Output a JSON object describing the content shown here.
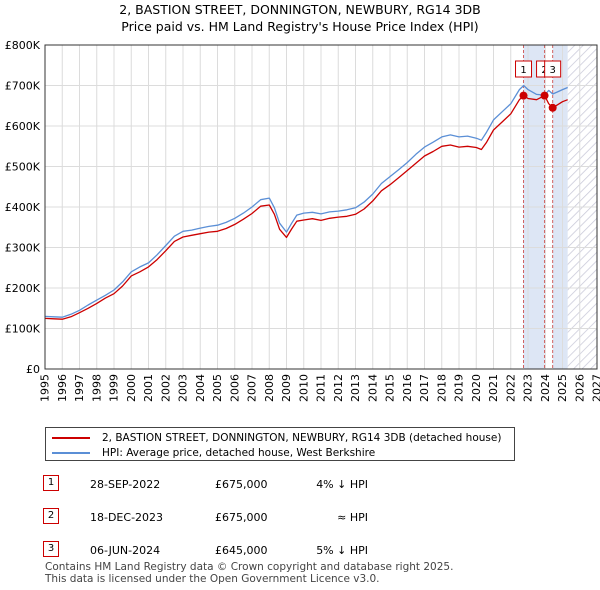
{
  "title_line1": "2, BASTION STREET, DONNINGTON, NEWBURY, RG14 3DB",
  "title_line2": "Price paid vs. HM Land Registry's House Price Index (HPI)",
  "colors": {
    "price_paid": "#cc0000",
    "hpi": "#5b8fd6",
    "shade": "#dde6f5",
    "marker_line": "#d06060",
    "hatch": "#c8c8d8"
  },
  "legend": {
    "price_paid": "2, BASTION STREET, DONNINGTON, NEWBURY, RG14 3DB (detached house)",
    "hpi": "HPI: Average price, detached house, West Berkshire"
  },
  "sales": [
    {
      "num": "1",
      "date": "28-SEP-2022",
      "price": "£675,000",
      "hpi": "4% ↓ HPI"
    },
    {
      "num": "2",
      "date": "18-DEC-2023",
      "price": "£675,000",
      "hpi": "≈ HPI"
    },
    {
      "num": "3",
      "date": "06-JUN-2024",
      "price": "£645,000",
      "hpi": "5% ↓ HPI"
    }
  ],
  "footer_line1": "Contains HM Land Registry data © Crown copyright and database right 2025.",
  "footer_line2": "This data is licensed under the Open Government Licence v3.0.",
  "chart_data": {
    "type": "line",
    "title": "2, BASTION STREET, DONNINGTON, NEWBURY, RG14 3DB",
    "subtitle": "Price paid vs. HM Land Registry's House Price Index (HPI)",
    "xlabel": "",
    "ylabel": "",
    "xlim": [
      1995,
      2027
    ],
    "ylim": [
      0,
      800000
    ],
    "x_ticks": [
      "1995",
      "1996",
      "1997",
      "1998",
      "1999",
      "2000",
      "2001",
      "2002",
      "2003",
      "2004",
      "2005",
      "2006",
      "2007",
      "2008",
      "2009",
      "2010",
      "2011",
      "2012",
      "2013",
      "2014",
      "2015",
      "2016",
      "2017",
      "2018",
      "2019",
      "2020",
      "2021",
      "2022",
      "2023",
      "2024",
      "2025",
      "2026",
      "2027"
    ],
    "y_ticks": [
      {
        "value": 0,
        "label": "£0"
      },
      {
        "value": 100000,
        "label": "£100K"
      },
      {
        "value": 200000,
        "label": "£200K"
      },
      {
        "value": 300000,
        "label": "£300K"
      },
      {
        "value": 400000,
        "label": "£400K"
      },
      {
        "value": 500000,
        "label": "£500K"
      },
      {
        "value": 600000,
        "label": "£600K"
      },
      {
        "value": 700000,
        "label": "£700K"
      },
      {
        "value": 800000,
        "label": "£800K"
      }
    ],
    "grid": true,
    "legend_position": "bottom",
    "series": [
      {
        "name": "HPI: Average price, detached house, West Berkshire",
        "x": [
          1995.0,
          1995.5,
          1996.0,
          1996.5,
          1997.0,
          1997.5,
          1998.0,
          1998.5,
          1999.0,
          1999.5,
          2000.0,
          2000.5,
          2001.0,
          2001.5,
          2002.0,
          2002.5,
          2003.0,
          2003.5,
          2004.0,
          2004.5,
          2005.0,
          2005.5,
          2006.0,
          2006.5,
          2007.0,
          2007.5,
          2008.0,
          2008.3,
          2008.6,
          2009.0,
          2009.3,
          2009.6,
          2010.0,
          2010.5,
          2011.0,
          2011.5,
          2012.0,
          2012.5,
          2013.0,
          2013.5,
          2014.0,
          2014.5,
          2015.0,
          2015.5,
          2016.0,
          2016.5,
          2017.0,
          2017.5,
          2018.0,
          2018.5,
          2019.0,
          2019.5,
          2020.0,
          2020.3,
          2020.6,
          2021.0,
          2021.5,
          2022.0,
          2022.5,
          2022.75,
          2023.0,
          2023.5,
          2023.96,
          2024.2,
          2024.43,
          2024.7,
          2025.0,
          2025.3
        ],
        "y": [
          130000,
          129000,
          128000,
          135000,
          145000,
          158000,
          170000,
          182000,
          195000,
          215000,
          240000,
          252000,
          262000,
          282000,
          305000,
          328000,
          340000,
          343000,
          348000,
          352000,
          355000,
          362000,
          372000,
          385000,
          400000,
          418000,
          422000,
          398000,
          360000,
          338000,
          360000,
          380000,
          385000,
          387000,
          383000,
          388000,
          390000,
          393000,
          398000,
          412000,
          432000,
          458000,
          475000,
          492000,
          510000,
          530000,
          548000,
          560000,
          573000,
          578000,
          573000,
          575000,
          570000,
          565000,
          585000,
          615000,
          635000,
          655000,
          690000,
          700000,
          690000,
          678000,
          676000,
          688000,
          679000,
          684000,
          690000,
          695000
        ]
      },
      {
        "name": "2, BASTION STREET, DONNINGTON, NEWBURY, RG14 3DB (detached house)",
        "x": [
          1995.0,
          1995.5,
          1996.0,
          1996.5,
          1997.0,
          1997.5,
          1998.0,
          1998.5,
          1999.0,
          1999.5,
          2000.0,
          2000.5,
          2001.0,
          2001.5,
          2002.0,
          2002.5,
          2003.0,
          2003.5,
          2004.0,
          2004.5,
          2005.0,
          2005.5,
          2006.0,
          2006.5,
          2007.0,
          2007.5,
          2008.0,
          2008.3,
          2008.6,
          2009.0,
          2009.3,
          2009.6,
          2010.0,
          2010.5,
          2011.0,
          2011.5,
          2012.0,
          2012.5,
          2013.0,
          2013.5,
          2014.0,
          2014.5,
          2015.0,
          2015.5,
          2016.0,
          2016.5,
          2017.0,
          2017.5,
          2018.0,
          2018.5,
          2019.0,
          2019.5,
          2020.0,
          2020.3,
          2020.6,
          2021.0,
          2021.5,
          2022.0,
          2022.5,
          2022.75,
          2023.0,
          2023.5,
          2023.96,
          2024.2,
          2024.43,
          2024.7,
          2025.0,
          2025.3
        ],
        "y": [
          125000,
          124000,
          123000,
          129000,
          139000,
          150000,
          162000,
          175000,
          186000,
          205000,
          230000,
          240000,
          252000,
          270000,
          292000,
          315000,
          326000,
          330000,
          334000,
          338000,
          340000,
          347000,
          357000,
          370000,
          384000,
          402000,
          405000,
          382000,
          345000,
          325000,
          346000,
          365000,
          368000,
          371000,
          367000,
          372000,
          375000,
          377000,
          382000,
          395000,
          415000,
          440000,
          455000,
          472000,
          490000,
          508000,
          526000,
          537000,
          550000,
          553000,
          548000,
          550000,
          547000,
          542000,
          560000,
          590000,
          610000,
          630000,
          665000,
          675000,
          668000,
          665000,
          675000,
          655000,
          645000,
          652000,
          660000,
          665000
        ]
      }
    ],
    "sale_markers": [
      {
        "label": "1",
        "x": 2022.74,
        "y": 675000
      },
      {
        "label": "2",
        "x": 2023.96,
        "y": 675000
      },
      {
        "label": "3",
        "x": 2024.43,
        "y": 645000
      }
    ],
    "shaded_ranges": [
      [
        2022.74,
        2023.96
      ],
      [
        2024.43,
        2025.3
      ]
    ],
    "hatched_range": [
      2025.3,
      2027
    ]
  }
}
